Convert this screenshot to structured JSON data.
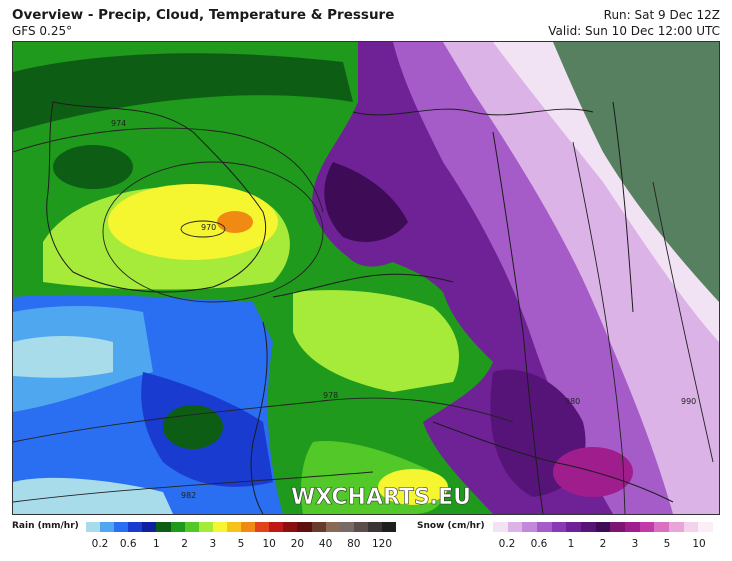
{
  "header": {
    "title": "Overview - Precip, Cloud, Temperature & Pressure",
    "model": "GFS 0.25°",
    "run": "Run: Sat 9 Dec 12Z",
    "valid": "Valid: Sun 10 Dec 12:00 UTC"
  },
  "map": {
    "watermark": "WXCHARTS.EU",
    "isobar_labels": [
      "974",
      "970",
      "978",
      "982",
      "980",
      "990"
    ]
  },
  "legend": {
    "rain": {
      "title": "Rain (mm/hr)",
      "ticks": [
        "0.2",
        "0.6",
        "1",
        "2",
        "3",
        "5",
        "10",
        "20",
        "40",
        "80",
        "120"
      ],
      "colors": [
        "#a8dcea",
        "#4fa7f0",
        "#2a6ef2",
        "#1a3bd0",
        "#0f1fa0",
        "#0d5e14",
        "#1f9a1c",
        "#52c928",
        "#a6ea3a",
        "#f5f530",
        "#f6c31a",
        "#f08a12",
        "#e2421a",
        "#bf1616",
        "#8b0f0f",
        "#5e1010",
        "#6a3a2a",
        "#8a6a55",
        "#7a6a66",
        "#5a4e4c",
        "#3a3434",
        "#1e1e1e"
      ]
    },
    "snow": {
      "title": "Snow (cm/hr)",
      "ticks": [
        "0.2",
        "0.6",
        "1",
        "2",
        "3",
        "5",
        "10"
      ],
      "colors": [
        "#f1e2f4",
        "#dcb3e6",
        "#c288da",
        "#a65cc8",
        "#8a38b4",
        "#6f2196",
        "#561478",
        "#3e0c57",
        "#7c1672",
        "#a01d8d",
        "#c23aa8",
        "#d970c2",
        "#e9a4d8",
        "#f5d2ec",
        "#fbeef8"
      ]
    }
  }
}
